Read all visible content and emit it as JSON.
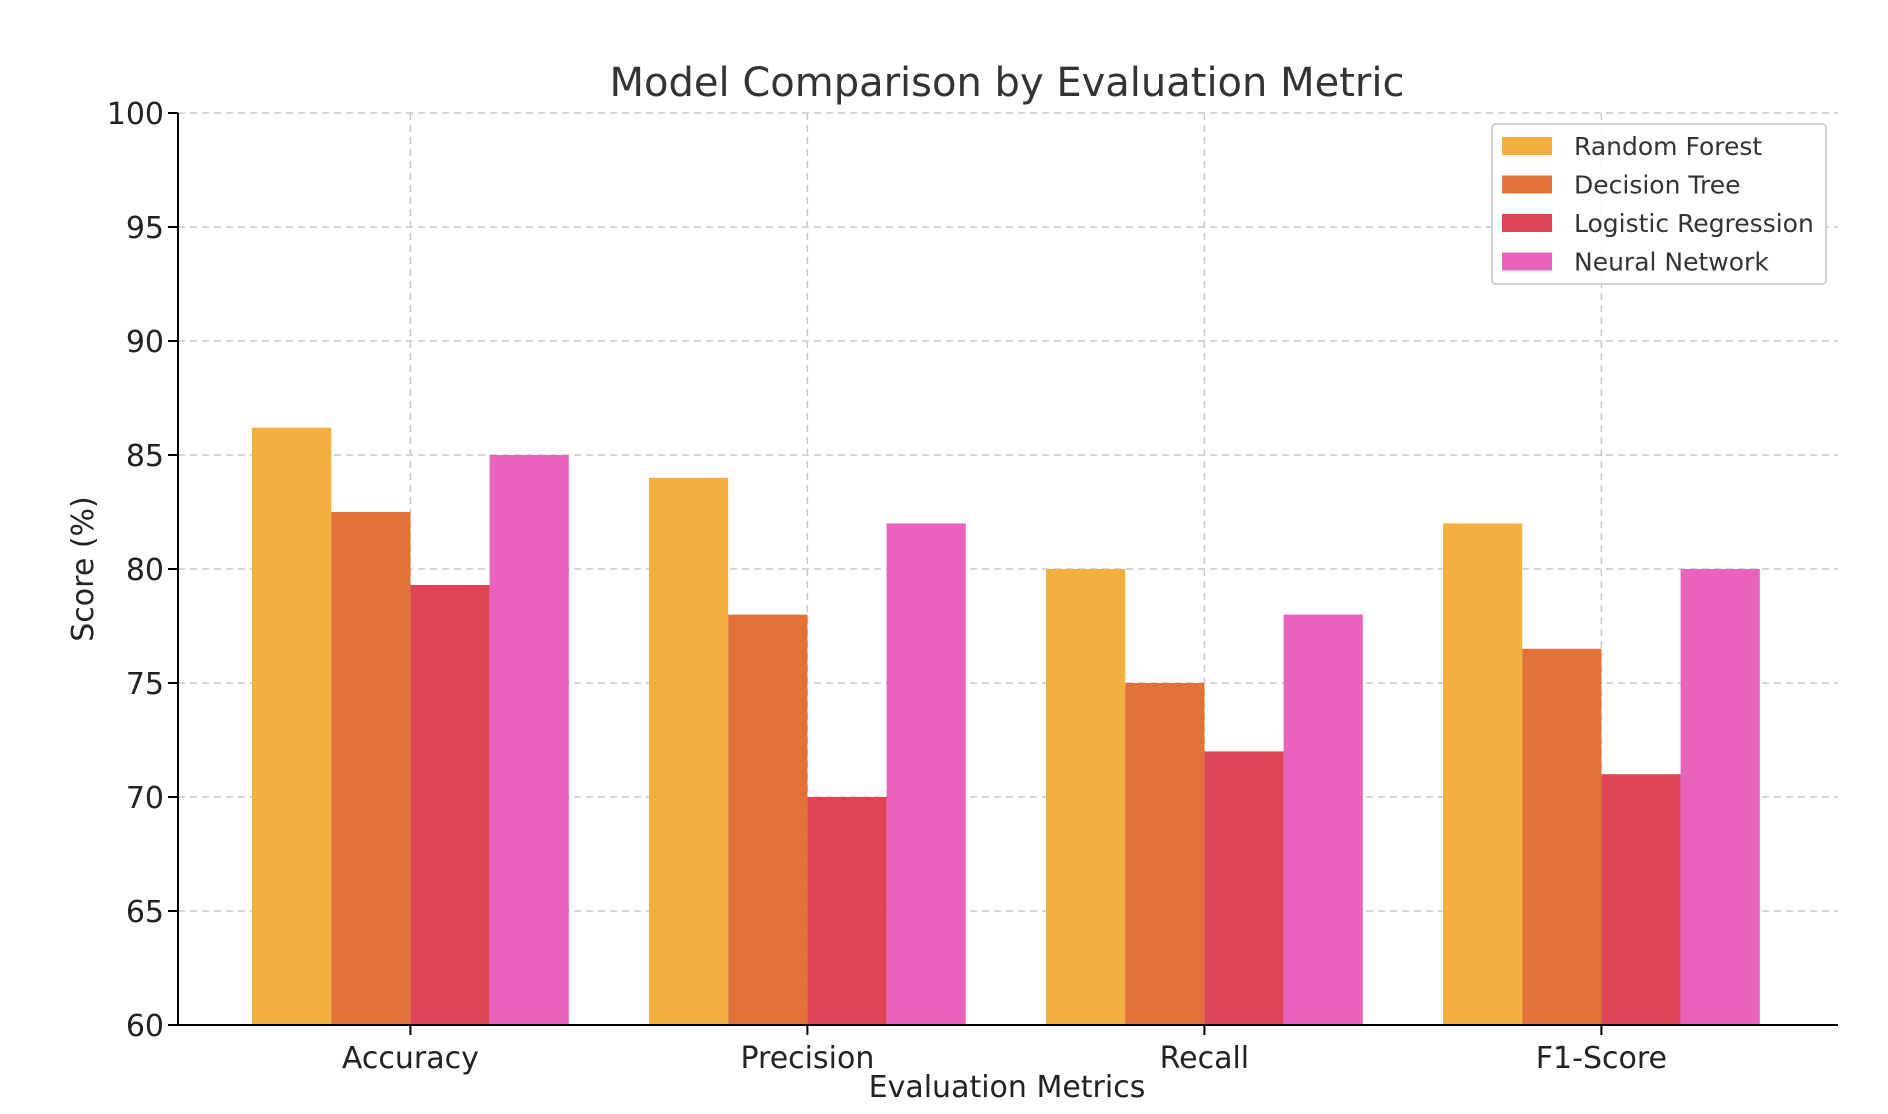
{
  "chart_data": {
    "type": "bar",
    "title": "Model Comparison by Evaluation Metric",
    "xlabel": "Evaluation Metrics",
    "ylabel": "Score (%)",
    "ylim": [
      60,
      100
    ],
    "yticks": [
      60,
      65,
      70,
      75,
      80,
      85,
      90,
      95,
      100
    ],
    "categories": [
      "Accuracy",
      "Precision",
      "Recall",
      "F1-Score"
    ],
    "series": [
      {
        "name": "Random Forest",
        "color": "#F2B13F",
        "values": [
          86.2,
          84,
          80,
          82
        ]
      },
      {
        "name": "Decision Tree",
        "color": "#E27238",
        "values": [
          82.5,
          78,
          75,
          76.5
        ]
      },
      {
        "name": "Logistic Regression",
        "color": "#E04557",
        "values": [
          79.3,
          70,
          72,
          71
        ]
      },
      {
        "name": "Neural Network",
        "color": "#E864BC",
        "values": [
          85,
          82,
          78,
          80
        ]
      }
    ],
    "grid": true,
    "legend_position": "top-right"
  }
}
